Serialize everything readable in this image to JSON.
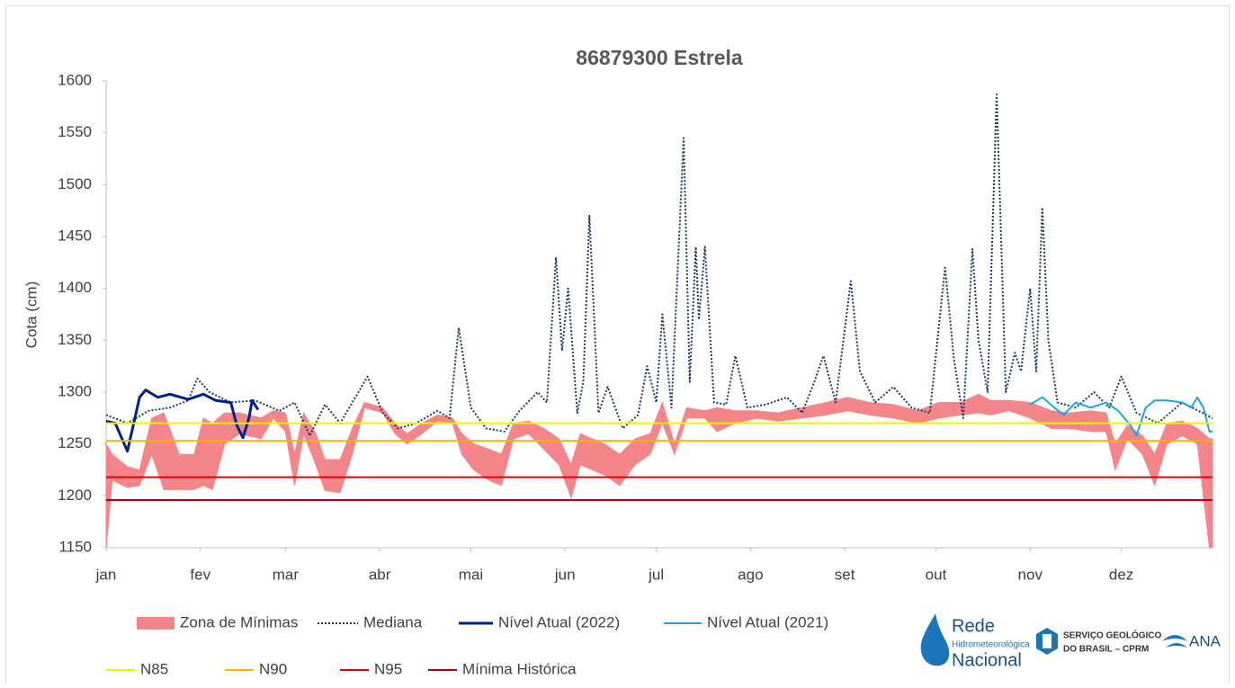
{
  "chart_data": {
    "type": "line",
    "title": "86879300 Estrela",
    "ylabel": "Cota (cm)",
    "ylim": [
      1150,
      1600
    ],
    "yticks": [
      1150,
      1200,
      1250,
      1300,
      1350,
      1400,
      1450,
      1500,
      1550,
      1600
    ],
    "xlim": [
      1,
      365
    ],
    "xticks": [
      {
        "value": 1,
        "label": "jan"
      },
      {
        "value": 32,
        "label": "fev"
      },
      {
        "value": 60,
        "label": "mar"
      },
      {
        "value": 91,
        "label": "abr"
      },
      {
        "value": 121,
        "label": "mai"
      },
      {
        "value": 152,
        "label": "jun"
      },
      {
        "value": 182,
        "label": "jul"
      },
      {
        "value": 213,
        "label": "ago"
      },
      {
        "value": 244,
        "label": "set"
      },
      {
        "value": 274,
        "label": "out"
      },
      {
        "value": 305,
        "label": "nov"
      },
      {
        "value": 335,
        "label": "dez"
      }
    ],
    "series": [
      {
        "name": "Zona de Mínimas",
        "type": "band",
        "color": "#f4858b",
        "x": [
          1,
          3,
          8,
          12,
          16,
          20,
          25,
          30,
          33,
          36,
          40,
          45,
          52,
          56,
          60,
          63,
          66,
          70,
          73,
          78,
          82,
          86,
          92,
          96,
          100,
          105,
          110,
          115,
          118,
          122,
          127,
          131,
          135,
          140,
          145,
          150,
          154,
          157,
          161,
          165,
          170,
          175,
          180,
          184,
          188,
          192,
          198,
          202,
          208,
          215,
          222,
          230,
          238,
          245,
          252,
          260,
          268,
          275,
          282,
          288,
          292,
          298,
          305,
          312,
          318,
          325,
          330,
          333,
          337,
          342,
          346,
          350,
          355,
          360,
          364,
          365
        ],
        "low": [
          1150,
          1215,
          1208,
          1210,
          1240,
          1206,
          1206,
          1206,
          1210,
          1206,
          1250,
          1260,
          1255,
          1275,
          1262,
          1210,
          1260,
          1230,
          1205,
          1203,
          1240,
          1285,
          1280,
          1260,
          1250,
          1260,
          1272,
          1270,
          1240,
          1225,
          1215,
          1210,
          1255,
          1260,
          1245,
          1230,
          1198,
          1230,
          1225,
          1220,
          1210,
          1230,
          1240,
          1270,
          1240,
          1275,
          1275,
          1262,
          1270,
          1275,
          1272,
          1275,
          1278,
          1282,
          1278,
          1275,
          1270,
          1275,
          1278,
          1280,
          1278,
          1282,
          1275,
          1265,
          1265,
          1262,
          1262,
          1225,
          1255,
          1240,
          1210,
          1250,
          1258,
          1250,
          1150,
          1150
        ],
        "high": [
          1250,
          1240,
          1228,
          1225,
          1275,
          1280,
          1240,
          1240,
          1275,
          1270,
          1280,
          1280,
          1275,
          1282,
          1280,
          1240,
          1280,
          1260,
          1235,
          1235,
          1265,
          1290,
          1285,
          1270,
          1260,
          1270,
          1278,
          1275,
          1260,
          1250,
          1245,
          1240,
          1270,
          1272,
          1265,
          1255,
          1230,
          1260,
          1255,
          1250,
          1240,
          1255,
          1260,
          1290,
          1250,
          1285,
          1282,
          1285,
          1282,
          1282,
          1280,
          1285,
          1290,
          1295,
          1290,
          1288,
          1282,
          1290,
          1290,
          1298,
          1292,
          1292,
          1290,
          1282,
          1280,
          1282,
          1280,
          1250,
          1268,
          1258,
          1240,
          1270,
          1272,
          1265,
          1255,
          1255
        ]
      },
      {
        "name": "Mediana",
        "style": "dotted",
        "color": "#1f3864",
        "x": [
          1,
          8,
          15,
          22,
          28,
          31,
          35,
          42,
          50,
          58,
          63,
          68,
          73,
          78,
          84,
          87,
          92,
          97,
          103,
          110,
          114,
          117,
          121,
          126,
          132,
          137,
          143,
          146,
          149,
          151,
          153,
          156,
          158,
          160,
          163,
          166,
          171,
          176,
          179,
          182,
          184,
          187,
          191,
          193,
          195,
          196,
          198,
          201,
          205,
          208,
          212,
          218,
          225,
          230,
          234,
          237,
          241,
          246,
          249,
          254,
          260,
          266,
          272,
          277,
          280,
          283,
          286,
          288,
          291,
          294,
          297,
          300,
          302,
          305,
          307,
          309,
          311,
          314,
          320,
          326,
          331,
          335,
          340,
          347,
          355,
          365
        ],
        "values": [
          1278,
          1270,
          1282,
          1285,
          1292,
          1313,
          1300,
          1290,
          1292,
          1282,
          1290,
          1258,
          1288,
          1270,
          1300,
          1315,
          1280,
          1265,
          1270,
          1282,
          1275,
          1362,
          1285,
          1265,
          1262,
          1282,
          1300,
          1290,
          1430,
          1340,
          1400,
          1280,
          1310,
          1470,
          1280,
          1305,
          1265,
          1278,
          1325,
          1290,
          1375,
          1285,
          1545,
          1310,
          1440,
          1370,
          1440,
          1290,
          1288,
          1335,
          1285,
          1288,
          1295,
          1280,
          1310,
          1335,
          1290,
          1407,
          1320,
          1290,
          1305,
          1285,
          1280,
          1420,
          1330,
          1275,
          1438,
          1350,
          1300,
          1587,
          1300,
          1338,
          1320,
          1400,
          1320,
          1478,
          1350,
          1290,
          1285,
          1300,
          1285,
          1315,
          1280,
          1270,
          1290,
          1275
        ]
      },
      {
        "name": "Nível Atual (2022)",
        "color": "#00208e",
        "width": 3,
        "x": [
          1,
          4,
          8,
          12,
          14,
          18,
          22,
          28,
          33,
          37,
          42,
          44,
          46,
          48,
          49,
          51
        ],
        "values": [
          1272,
          1270,
          1243,
          1295,
          1302,
          1295,
          1298,
          1293,
          1298,
          1292,
          1290,
          1268,
          1256,
          1275,
          1292,
          1283
        ]
      },
      {
        "name": "Nível Atual (2021)",
        "color": "#1aa7e8",
        "width": 2,
        "x": [
          305,
          309,
          313,
          316,
          320,
          325,
          330,
          334,
          338,
          340,
          343,
          346,
          350,
          355,
          358,
          360,
          362,
          364,
          365
        ],
        "values": [
          1288,
          1295,
          1285,
          1278,
          1290,
          1285,
          1290,
          1282,
          1268,
          1258,
          1285,
          1292,
          1292,
          1290,
          1285,
          1295,
          1285,
          1262,
          1262
        ]
      },
      {
        "name": "N85",
        "color": "#f2f200",
        "width": 2,
        "x": [
          1,
          365
        ],
        "values": [
          1270,
          1270
        ]
      },
      {
        "name": "N90",
        "color": "#f4b400",
        "width": 2,
        "x": [
          1,
          365
        ],
        "values": [
          1253,
          1253
        ]
      },
      {
        "name": "N95",
        "color": "#e00000",
        "width": 2,
        "x": [
          1,
          365
        ],
        "values": [
          1218,
          1218
        ]
      },
      {
        "name": "Mínima Histórica",
        "color": "#b00000",
        "width": 2,
        "x": [
          1,
          365
        ],
        "values": [
          1196,
          1196
        ]
      }
    ]
  },
  "logos": {
    "rede": [
      "Rede",
      "Hidrometeorológica",
      "Nacional"
    ],
    "cprm": [
      "SERVIÇO GEOLÓGICO",
      "DO BRASIL – CPRM"
    ],
    "ana": "ANA"
  }
}
